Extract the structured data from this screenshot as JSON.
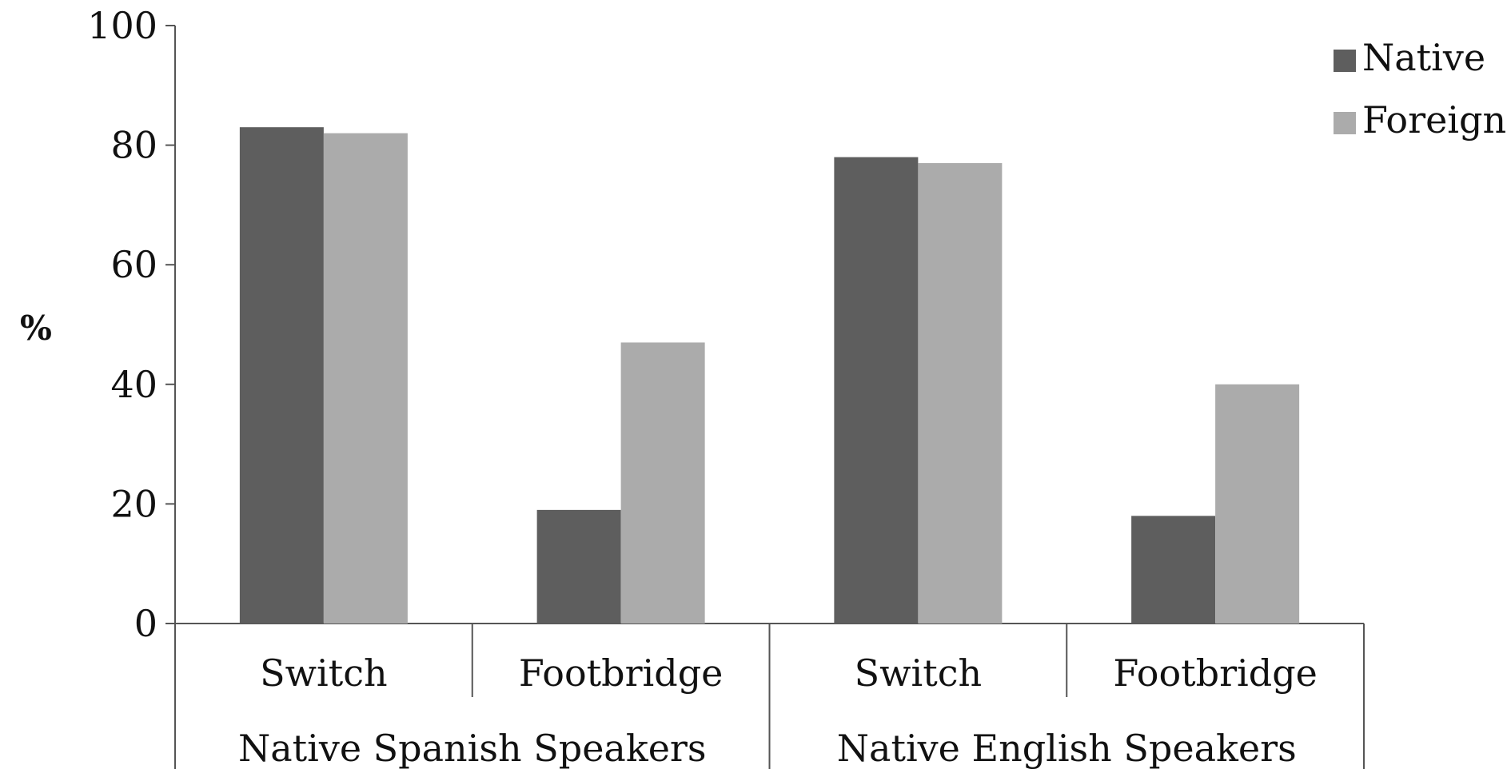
{
  "chart_data": {
    "type": "bar",
    "ylabel": "%",
    "ylim": [
      0,
      100
    ],
    "yticks": [
      0,
      20,
      40,
      60,
      80,
      100
    ],
    "grid": false,
    "legend_position": "top-right",
    "categories": [
      "Switch",
      "Footbridge",
      "Switch",
      "Footbridge"
    ],
    "groups": [
      {
        "label": "Native Spanish Speakers",
        "category_indices": [
          0,
          1
        ]
      },
      {
        "label": "Native English Speakers",
        "category_indices": [
          2,
          3
        ]
      }
    ],
    "series": [
      {
        "name": "Native",
        "color": "#5e5e5e",
        "values": [
          83,
          19,
          78,
          18
        ]
      },
      {
        "name": "Foreign",
        "color": "#ababab",
        "values": [
          82,
          47,
          77,
          40
        ]
      }
    ]
  }
}
